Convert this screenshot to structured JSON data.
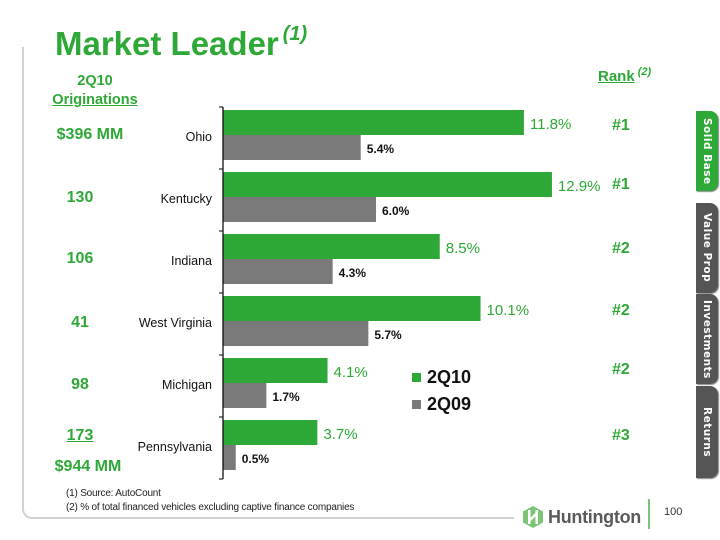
{
  "title": {
    "text": "Market Leader",
    "note": "(1)"
  },
  "originations": {
    "header_line1": "2Q10",
    "header_line2": "Originations",
    "values": [
      "$396 MM",
      "130",
      "106",
      "41",
      "98",
      "173"
    ],
    "total": "$944 MM"
  },
  "rank": {
    "header": "Rank",
    "note": "(2)",
    "values": [
      "#1",
      "#1",
      "#2",
      "#2",
      "#2",
      "#3"
    ]
  },
  "chart_data": {
    "type": "bar",
    "orientation": "horizontal",
    "categories": [
      "Ohio",
      "Kentucky",
      "Indiana",
      "West Virginia",
      "Michigan",
      "Pennsylvania"
    ],
    "series": [
      {
        "name": "2Q10",
        "color": "#2ea836",
        "values": [
          11.8,
          12.9,
          8.5,
          10.1,
          4.1,
          3.7
        ],
        "labels": [
          "11.8%",
          "12.9%",
          "8.5%",
          "10.1%",
          "4.1%",
          "3.7%"
        ]
      },
      {
        "name": "2Q09",
        "color": "#7a7a7a",
        "values": [
          5.4,
          6.0,
          4.3,
          5.7,
          1.7,
          0.5
        ],
        "labels": [
          "5.4%",
          "6.0%",
          "4.3%",
          "5.7%",
          "1.7%",
          "0.5%"
        ]
      }
    ],
    "xlim": [
      0,
      13
    ],
    "unit": "%",
    "legend": "bottom-center",
    "grid": false
  },
  "footnotes": [
    "(1) Source: AutoCount",
    "(2)  % of total financed vehicles excluding captive finance companies"
  ],
  "tabs": [
    {
      "label": "Solid Base",
      "active": true
    },
    {
      "label": "Value Prop",
      "active": false
    },
    {
      "label": "Investments",
      "active": false
    },
    {
      "label": "Returns",
      "active": false
    }
  ],
  "logo": {
    "text": "Huntington",
    "color": "#7cc576"
  },
  "page_number": "100"
}
